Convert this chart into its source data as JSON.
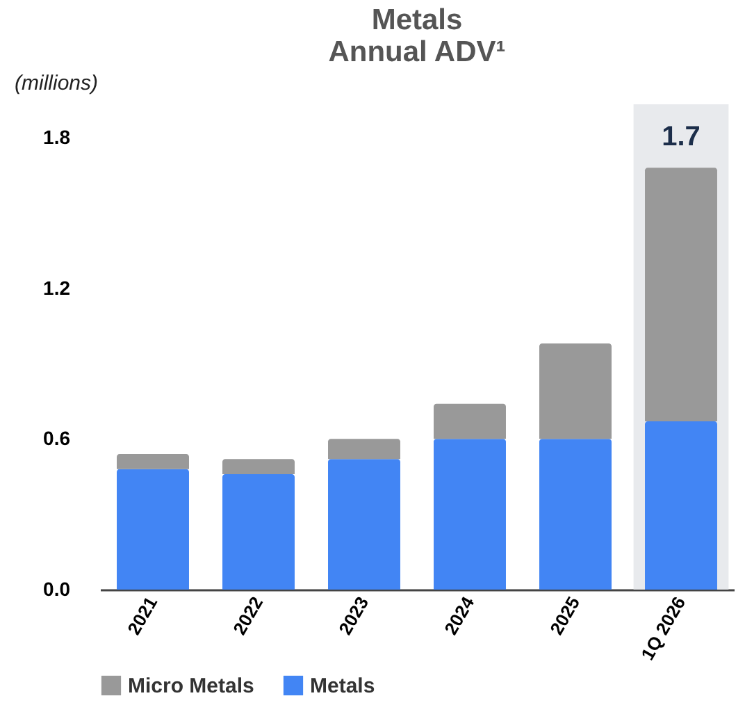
{
  "chart_data": {
    "type": "bar",
    "title": "Metals",
    "subtitle": "Annual ADV¹",
    "ylabel": "(millions)",
    "categories": [
      "2021",
      "2022",
      "2023",
      "2024",
      "2025",
      "1Q 2026"
    ],
    "stacked": true,
    "series": [
      {
        "name": "Metals",
        "color": "#4285f4",
        "values": [
          0.48,
          0.46,
          0.52,
          0.6,
          0.6,
          0.67
        ]
      },
      {
        "name": "Micro Metals",
        "color": "#999999",
        "values": [
          0.06,
          0.06,
          0.08,
          0.14,
          0.38,
          1.01
        ]
      }
    ],
    "totals": [
      null,
      null,
      null,
      null,
      null,
      "1.7"
    ],
    "bands": [
      {
        "axis": "x",
        "from": "1Q 2026",
        "to": "1Q 2026",
        "color": "#e8eaed"
      }
    ],
    "ylim": [
      0,
      1.8
    ],
    "yticks": [
      {
        "value": 0,
        "label": "0.0"
      },
      0.6,
      1.2,
      1.8
    ],
    "grid": false,
    "legend": "bottom"
  }
}
